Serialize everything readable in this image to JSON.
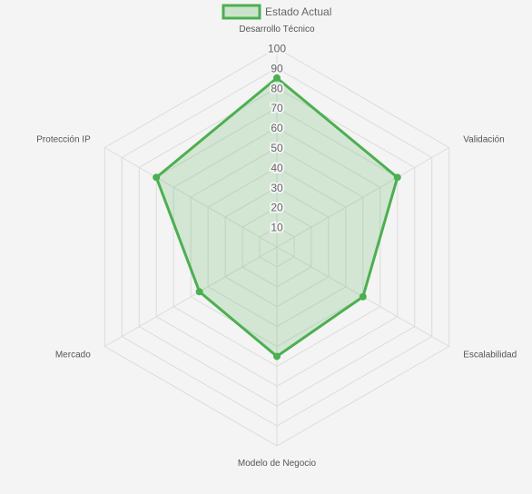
{
  "chart_data": {
    "type": "radar",
    "title": "",
    "axes": [
      "Desarrollo Técnico",
      "Validación",
      "Escalabilidad",
      "Modelo de Negocio",
      "Mercado",
      "Protección IP"
    ],
    "series": [
      {
        "name": "Estado Actual",
        "values": [
          85,
          70,
          50,
          55,
          45,
          70
        ]
      }
    ],
    "r_range": [
      0,
      100
    ],
    "ticks": [
      "10",
      "20",
      "30",
      "40",
      "50",
      "60",
      "70",
      "80",
      "90",
      "100"
    ],
    "grid": true,
    "legend_position": "top-center",
    "colors": {
      "series_stroke": "#4caf50",
      "series_fill": "rgba(76,175,80,0.2)",
      "grid": "#dcdcdc",
      "background": "#f4f4f4"
    }
  }
}
